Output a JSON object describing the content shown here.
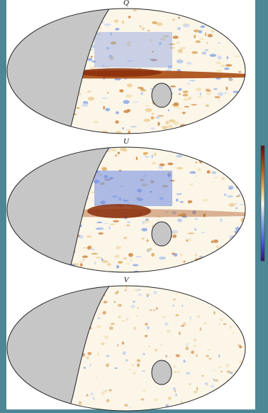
{
  "panels": [
    {
      "label": "Q"
    },
    {
      "label": "U"
    },
    {
      "label": "V"
    }
  ]
}
